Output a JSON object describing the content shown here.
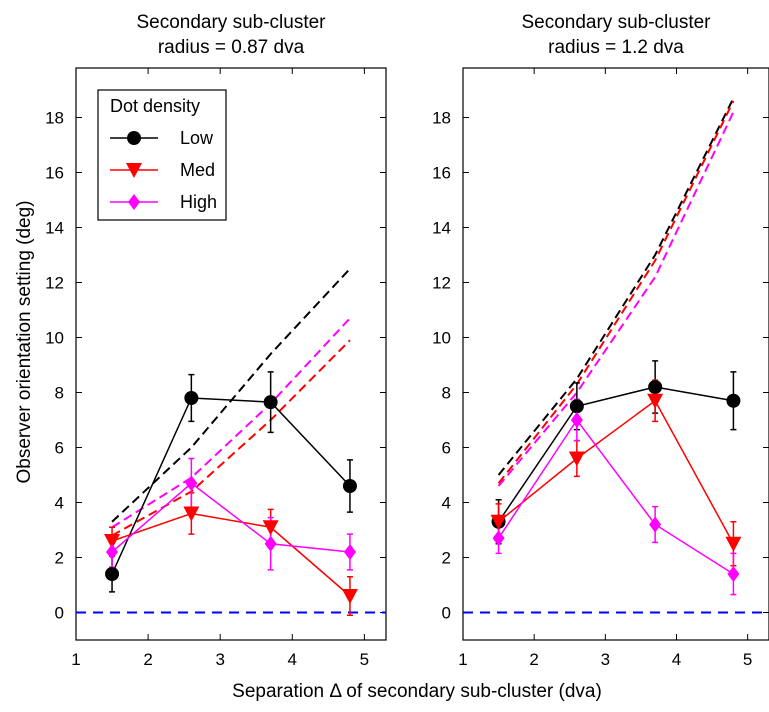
{
  "figure": {
    "ylabel": "Observer orientation setting (deg)",
    "xlabel": "Separation Δ of secondary sub-cluster (dva)"
  },
  "legend": {
    "title": "Dot density",
    "items": [
      {
        "label": "Low",
        "color": "#000000",
        "marker": "circle"
      },
      {
        "label": "Med",
        "color": "#ff0000",
        "marker": "triangle-down"
      },
      {
        "label": "High",
        "color": "#ff00ff",
        "marker": "diamond"
      }
    ],
    "placement": "top-left of left panel"
  },
  "reference_line": {
    "y": 0,
    "color": "#0000ff",
    "style": "dashed"
  },
  "chart_data": [
    {
      "type": "line",
      "title_line1": "Secondary sub-cluster",
      "title_line2": "radius = 0.87 dva",
      "xlim": [
        1,
        5.3
      ],
      "ylim": [
        -1,
        19.8
      ],
      "xticks": [
        1,
        2,
        3,
        4,
        5
      ],
      "yticks": [
        0,
        2,
        4,
        6,
        8,
        10,
        12,
        14,
        16,
        18
      ],
      "x": [
        1.5,
        2.6,
        3.7,
        4.8
      ],
      "series": [
        {
          "name": "Low",
          "color": "#000000",
          "marker": "circle",
          "values": [
            1.4,
            7.8,
            7.65,
            4.6
          ],
          "err": [
            0.65,
            0.85,
            1.1,
            0.95
          ],
          "prediction": [
            3.3,
            6.0,
            9.4,
            12.5
          ]
        },
        {
          "name": "Med",
          "color": "#ff0000",
          "marker": "triangle-down",
          "values": [
            2.6,
            3.6,
            3.1,
            0.6
          ],
          "err": [
            0.5,
            0.75,
            0.65,
            0.7
          ],
          "prediction": [
            2.8,
            4.4,
            7.0,
            9.9
          ]
        },
        {
          "name": "High",
          "color": "#ff00ff",
          "marker": "diamond",
          "values": [
            2.2,
            4.7,
            2.5,
            2.2
          ],
          "err": [
            0.55,
            0.9,
            0.95,
            0.65
          ],
          "prediction": [
            3.1,
            4.9,
            7.6,
            10.7
          ]
        }
      ]
    },
    {
      "type": "line",
      "title_line1": "Secondary sub-cluster",
      "title_line2": "radius = 1.2 dva",
      "xlim": [
        1,
        5.3
      ],
      "ylim": [
        -1,
        19.8
      ],
      "xticks": [
        1,
        2,
        3,
        4,
        5
      ],
      "yticks": [
        0,
        2,
        4,
        6,
        8,
        10,
        12,
        14,
        16,
        18
      ],
      "x": [
        1.5,
        2.6,
        3.7,
        4.8
      ],
      "series": [
        {
          "name": "Low",
          "color": "#000000",
          "marker": "circle",
          "values": [
            3.3,
            7.5,
            8.2,
            7.7
          ],
          "err": [
            0.8,
            0.85,
            0.95,
            1.05
          ],
          "prediction": [
            5.0,
            8.5,
            13.0,
            18.7
          ]
        },
        {
          "name": "Med",
          "color": "#ff0000",
          "marker": "triangle-down",
          "values": [
            3.3,
            5.6,
            7.7,
            2.5
          ],
          "err": [
            0.65,
            0.65,
            0.75,
            0.8
          ],
          "prediction": [
            4.7,
            8.3,
            12.8,
            18.6
          ]
        },
        {
          "name": "High",
          "color": "#ff00ff",
          "marker": "diamond",
          "values": [
            2.7,
            7.0,
            3.2,
            1.4
          ],
          "err": [
            0.55,
            0.75,
            0.65,
            0.75
          ],
          "prediction": [
            4.6,
            8.0,
            12.2,
            18.2
          ]
        }
      ]
    }
  ]
}
